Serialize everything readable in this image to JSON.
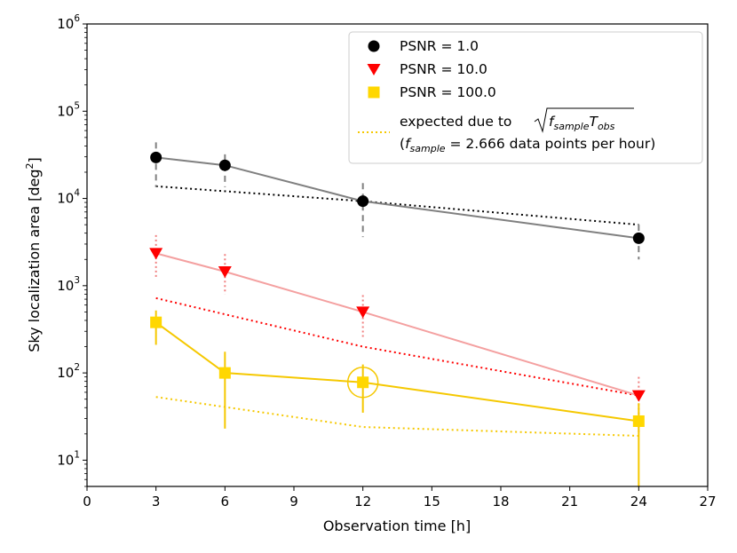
{
  "chart_data": {
    "type": "line",
    "xlabel": "Observation time [h]",
    "ylabel_main": "Sky localization area [deg",
    "ylabel_sup": "2",
    "ylabel_close": "]",
    "xlim": [
      0,
      27
    ],
    "ylim": [
      5,
      1000000
    ],
    "yscale": "log",
    "x_ticks": [
      0,
      3,
      6,
      9,
      12,
      15,
      18,
      21,
      24,
      27
    ],
    "y_ticks": [
      {
        "value": 10,
        "base": "10",
        "exp": "1"
      },
      {
        "value": 100,
        "base": "10",
        "exp": "2"
      },
      {
        "value": 1000,
        "base": "10",
        "exp": "3"
      },
      {
        "value": 10000,
        "base": "10",
        "exp": "4"
      },
      {
        "value": 100000,
        "base": "10",
        "exp": "5"
      },
      {
        "value": 1000000,
        "base": "10",
        "exp": "6"
      }
    ],
    "series": [
      {
        "name": "PSNR = 1.0",
        "marker": "circle",
        "marker_color": "#000000",
        "line_color": "#808080",
        "errorbar_color": "#808080",
        "errorbar_style": "dashed",
        "x": [
          3,
          6,
          12,
          24
        ],
        "y": [
          29500,
          24000,
          9300,
          3500
        ],
        "err_low": [
          13500,
          13500,
          3600,
          2000
        ],
        "err_high": [
          44000,
          32000,
          15000,
          5000
        ]
      },
      {
        "name": "PSNR = 10.0",
        "marker": "triangle-down",
        "marker_color": "#ff0000",
        "line_color": "#f4a0a0",
        "errorbar_color": "#f08080",
        "errorbar_style": "dotted",
        "x": [
          3,
          6,
          12,
          24
        ],
        "y": [
          2350,
          1450,
          500,
          55
        ],
        "err_low": [
          1200,
          800,
          250,
          20
        ],
        "err_high": [
          3800,
          2300,
          780,
          90
        ]
      },
      {
        "name": "PSNR = 100.0",
        "marker": "square",
        "marker_color": "#ffd700",
        "line_color": "#f5c800",
        "errorbar_color": "#f5c800",
        "errorbar_style": "solid",
        "x": [
          3,
          6,
          12,
          24
        ],
        "y": [
          380,
          100,
          78,
          28
        ],
        "err_low": [
          210,
          23,
          35,
          5
        ],
        "err_high": [
          520,
          175,
          125,
          45
        ],
        "highlight_x": 12,
        "highlight_y": 78
      }
    ],
    "expected": [
      {
        "color": "#000000",
        "x": [
          3,
          12,
          24
        ],
        "y": [
          13800,
          9300,
          5000
        ]
      },
      {
        "color": "#ff0000",
        "x": [
          3,
          12,
          24
        ],
        "y": [
          720,
          200,
          55
        ]
      },
      {
        "color": "#f5c800",
        "x": [
          3,
          12,
          24
        ],
        "y": [
          53,
          24,
          19
        ]
      }
    ],
    "legend": {
      "placement": "top-right",
      "entries": [
        "PSNR = 1.0",
        "PSNR = 10.0",
        "PSNR = 100.0"
      ],
      "expected_label_prefix": "expected due to",
      "expected_sqrt_f": "f",
      "expected_sqrt_f_sub": "sample",
      "expected_sqrt_T": "T",
      "expected_sqrt_T_sub": "obs",
      "expected_line2_open": "(",
      "expected_line2_f": "f",
      "expected_line2_f_sub": "sample",
      "expected_line2_rest": " = 2.666 data points per hour)"
    }
  }
}
